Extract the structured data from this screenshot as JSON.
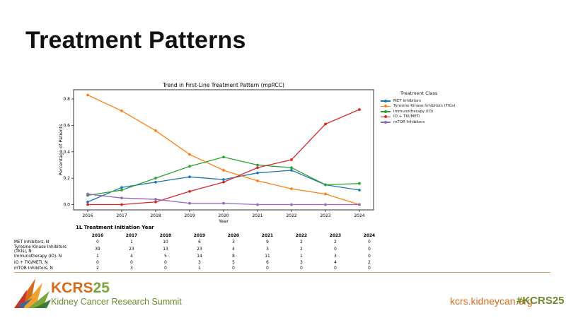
{
  "slide": {
    "title": "Treatment Patterns"
  },
  "chart_data": {
    "type": "line",
    "title": "Trend in First-Line Treatment Pattern (mpRCC)",
    "xlabel": "Year",
    "ylabel": "Percentage of Patients",
    "x": [
      2016,
      2017,
      2018,
      2019,
      2020,
      2021,
      2022,
      2023,
      2024
    ],
    "ylim": [
      -0.04,
      0.87
    ],
    "yticks": [
      0.0,
      0.2,
      0.4,
      0.6,
      0.8
    ],
    "grid": false,
    "legend_title": "Treatment Class",
    "legend_position": "outside right",
    "series": [
      {
        "name": "MET Inhibitors",
        "color": "#1f77b4",
        "values": [
          0.02,
          0.13,
          0.17,
          0.21,
          0.19,
          0.24,
          0.26,
          0.15,
          0.11
        ]
      },
      {
        "name": "Tyrosine Kinase Inhibitors (TKIs)",
        "color": "#ff7f0e",
        "values": [
          0.83,
          0.71,
          0.56,
          0.38,
          0.26,
          0.18,
          0.12,
          0.08,
          0.0
        ]
      },
      {
        "name": "Immunotherapy (IO)",
        "color": "#2ca02c",
        "values": [
          0.07,
          0.11,
          0.2,
          0.29,
          0.36,
          0.3,
          0.28,
          0.15,
          0.16
        ]
      },
      {
        "name": "IO + TKI/METi",
        "color": "#d62728",
        "values": [
          0.0,
          0.0,
          0.02,
          0.1,
          0.17,
          0.28,
          0.34,
          0.61,
          0.72
        ]
      },
      {
        "name": "mTOR Inhibitors",
        "color": "#9467bd",
        "values": [
          0.08,
          0.05,
          0.04,
          0.01,
          0.01,
          0.0,
          0.0,
          0.0,
          0.0
        ]
      }
    ]
  },
  "counts_table": {
    "title": "1L Treatment Initiation Year",
    "years": [
      "2016",
      "2017",
      "2018",
      "2019",
      "2020",
      "2021",
      "2022",
      "2023",
      "2024"
    ],
    "rows": [
      {
        "label": "MET Inhibitors, N",
        "values": [
          "0",
          "1",
          "10",
          "6",
          "3",
          "9",
          "2",
          "2",
          "0"
        ]
      },
      {
        "label": "Tyrosine Kinase Inhibitors (TKIs), N",
        "values": [
          "39",
          "23",
          "13",
          "23",
          "4",
          "3",
          "2",
          "0",
          "0"
        ]
      },
      {
        "label": "Immunotherapy (IO), N",
        "values": [
          "1",
          "4",
          "5",
          "14",
          "8",
          "11",
          "1",
          "3",
          "0"
        ]
      },
      {
        "label": "IO + TKI/METi, N",
        "values": [
          "0",
          "0",
          "0",
          "3",
          "5",
          "6",
          "3",
          "4",
          "2"
        ]
      },
      {
        "label": "mTOR Inhibitors, N",
        "values": [
          "2",
          "3",
          "0",
          "1",
          "0",
          "0",
          "0",
          "0",
          "0"
        ]
      }
    ]
  },
  "footer": {
    "logo_kcrs": "KCRS",
    "logo_num": "25",
    "logo_subtitle": "Kidney Cancer Research Summit",
    "website": "kcrs.kidneycan.org",
    "hashtag": "#KCRS25",
    "colors": {
      "orange": "#d86a1c",
      "green": "#6a8b2d",
      "divider": "#c8a46e"
    }
  }
}
